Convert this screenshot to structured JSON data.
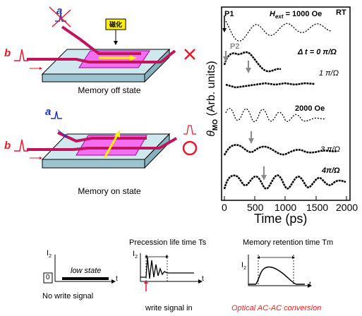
{
  "memory_off": {
    "caption": "Memory off state",
    "magnetization_label": "磁化",
    "pulse_a_label": "a",
    "pulse_b_label": "b"
  },
  "memory_on": {
    "caption": "Memory on state",
    "pulse_a_label": "a",
    "pulse_b_label": "b"
  },
  "plot": {
    "ylabel_main": "θ",
    "ylabel_sub": "MO",
    "ylabel_units": "(Arb. units)",
    "xlabel": "Time (ps)",
    "xticks": [
      "0",
      "500",
      "1000",
      "1500",
      "2000"
    ],
    "label_p1": "P1",
    "label_p2": "P2",
    "label_hext": "H",
    "label_hext_sub": "ext",
    "label_hext_value": "= 1000 Oe",
    "label_rt": "RT",
    "label_dt0": "Δ t = 0 π/Ω",
    "label_1pi": "1 π/Ω",
    "label_2000": "2000 Oe",
    "label_3pi": "3 π/Ω",
    "label_4pi": "4π/Ω"
  },
  "bottom": {
    "panel1": {
      "i2_label": "I",
      "i2_sub": "2",
      "t_label": "t",
      "level_label": "low state",
      "zero_label": "0",
      "caption": "No write signal"
    },
    "panel2": {
      "title": "Precession life time Ts",
      "i2_label": "I",
      "i2_sub": "2",
      "t_label": "t",
      "caption": "write signal in"
    },
    "panel3": {
      "title": "Memory retention time Tm",
      "i2_label": "I",
      "i2_sub": "2",
      "t_label": "t",
      "caption": "Optical AC-AC conversion"
    }
  },
  "colors": {
    "waveguide": "#c0155e",
    "substrate_top": "#cfe7ee",
    "substrate_side": "#9cc3cf",
    "magnet": "#f36ef0",
    "arrow_yellow": "#fff200",
    "accent_red": "#e8192c",
    "pulse_blue": "#2233cc",
    "caption_red": "#ff2020"
  }
}
